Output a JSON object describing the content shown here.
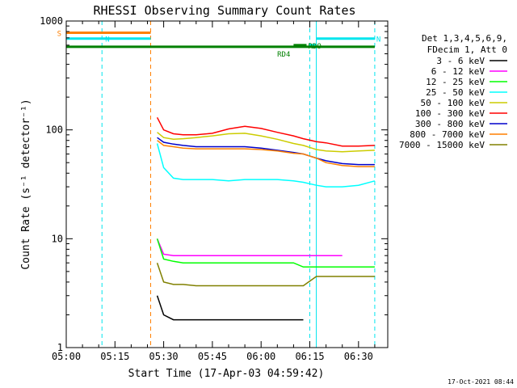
{
  "chart_data": {
    "type": "line",
    "title": "RHESSI Observing Summary Count Rates",
    "xlabel": "Start Time (17-Apr-03 04:59:42)",
    "ylabel": "Count Rate (s⁻¹ detector⁻¹)",
    "x_unit": "UT time",
    "xlim": [
      "05:00",
      "06:39"
    ],
    "ylim": [
      1,
      1000
    ],
    "yscale": "log",
    "xticks": [
      "05:00",
      "05:15",
      "05:30",
      "05:45",
      "06:00",
      "06:15",
      "06:30"
    ],
    "yticks": [
      1,
      10,
      100,
      1000
    ],
    "ytick_labels": [
      "1",
      "10",
      "100",
      "1000"
    ],
    "legend_header": [
      "Det 1,3,4,5,6,9,",
      "FDecim 1, Att 0"
    ],
    "legend_position": "right",
    "grid": false,
    "flags": [
      {
        "label": "S",
        "color": "#ff7f00",
        "start": "05:00",
        "end": "05:26",
        "level": 780
      },
      {
        "label": "N",
        "color": "#00e5ee",
        "start": "05:00",
        "end": "05:26",
        "level": 690
      },
      {
        "label": "N",
        "color": "#00e5ee",
        "start": "06:17",
        "end": "06:35",
        "level": 690
      },
      {
        "label": "",
        "color": "#00e5ee",
        "start": "06:15",
        "end": "06:17",
        "level": 600
      },
      {
        "label": "RD4",
        "color": "#008000",
        "start": "05:00",
        "end": "06:35",
        "level": 580
      },
      {
        "label": "RDO",
        "color": "#008000",
        "start": "06:10",
        "end": "06:14",
        "level": 600
      }
    ],
    "vlines": [
      {
        "time": "05:00",
        "color": "#ff7f00",
        "style": "solid"
      },
      {
        "time": "05:11",
        "color": "#00e5ee",
        "style": "dashed"
      },
      {
        "time": "05:26",
        "color": "#ff7f00",
        "style": "dashed"
      },
      {
        "time": "06:15",
        "color": "#00e5ee",
        "style": "dashed"
      },
      {
        "time": "06:17",
        "color": "#00e5ee",
        "style": "solid"
      },
      {
        "time": "06:35",
        "color": "#00e5ee",
        "style": "dashed"
      }
    ],
    "x": [
      "05:28",
      "05:30",
      "05:33",
      "05:36",
      "05:40",
      "05:45",
      "05:50",
      "05:55",
      "06:00",
      "06:05",
      "06:10",
      "06:13",
      "06:17",
      "06:20",
      "06:25",
      "06:30",
      "06:35"
    ],
    "series": [
      {
        "name": "3 - 6 keV",
        "color": "#000000",
        "values": [
          3,
          2,
          1.8,
          1.8,
          1.8,
          1.8,
          1.8,
          1.8,
          1.8,
          1.8,
          1.8,
          1.8,
          null,
          null,
          null,
          null,
          null
        ]
      },
      {
        "name": "6 - 12 keV",
        "color": "#ff00ff",
        "values": [
          10,
          7.2,
          7,
          7,
          7,
          7,
          7,
          7,
          7,
          7,
          7,
          7,
          7,
          7,
          7,
          null,
          null
        ]
      },
      {
        "name": "12 - 25 keV",
        "color": "#00ff00",
        "values": [
          10,
          6.5,
          6.2,
          6,
          6,
          6,
          6,
          6,
          6,
          6,
          6,
          5.5,
          5.5,
          5.5,
          5.5,
          5.5,
          5.5
        ]
      },
      {
        "name": "25 - 50 keV",
        "color": "#00ffff",
        "values": [
          75,
          45,
          36,
          35,
          35,
          35,
          34,
          35,
          35,
          35,
          34,
          33,
          31,
          30,
          30,
          31,
          34
        ]
      },
      {
        "name": "50 - 100 keV",
        "color": "#cccc00",
        "values": [
          95,
          85,
          82,
          83,
          85,
          88,
          92,
          93,
          88,
          82,
          75,
          72,
          66,
          64,
          63,
          64,
          65
        ]
      },
      {
        "name": "100 - 300 keV",
        "color": "#ff0000",
        "values": [
          130,
          100,
          92,
          90,
          90,
          93,
          102,
          108,
          103,
          95,
          88,
          83,
          78,
          76,
          71,
          71,
          72
        ]
      },
      {
        "name": "300 - 800 keV",
        "color": "#0000cc",
        "values": [
          85,
          77,
          74,
          72,
          70,
          70,
          70,
          70,
          68,
          65,
          62,
          60,
          55,
          52,
          49,
          48,
          48
        ]
      },
      {
        "name": "800 - 7000 keV",
        "color": "#ff7f00",
        "values": [
          80,
          72,
          70,
          68,
          67,
          67,
          67,
          67,
          66,
          64,
          61,
          60,
          55,
          50,
          47,
          46,
          46
        ]
      },
      {
        "name": "7000 - 15000 keV",
        "color": "#808000",
        "values": [
          6,
          4,
          3.8,
          3.8,
          3.7,
          3.7,
          3.7,
          3.7,
          3.7,
          3.7,
          3.7,
          3.7,
          4.5,
          4.5,
          4.5,
          4.5,
          4.5
        ]
      }
    ]
  },
  "footer": {
    "date_stamp": "17-Oct-2021 08:44"
  },
  "colors": {
    "axis": "#000000",
    "background": "#ffffff"
  }
}
